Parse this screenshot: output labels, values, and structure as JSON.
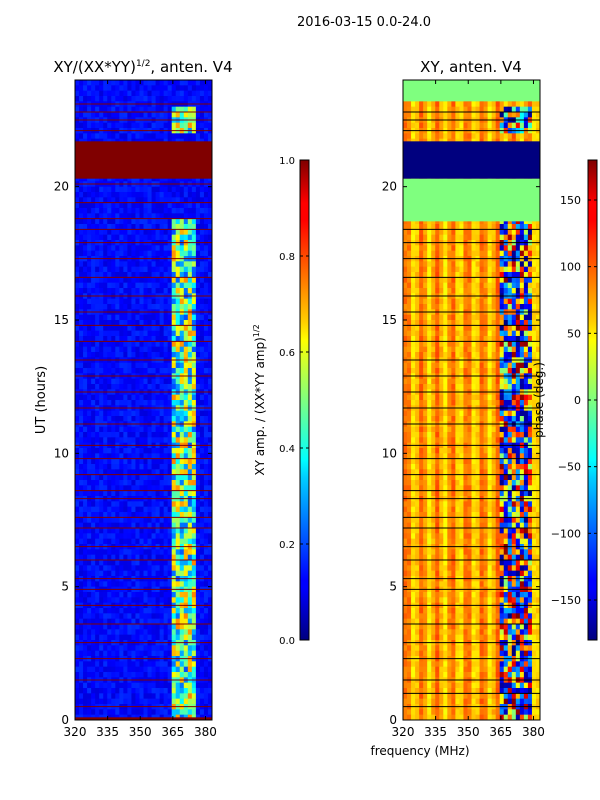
{
  "suptitle": "2016-03-15 0.0-24.0",
  "shared_xlabel": "frequency (MHz)",
  "chart_data": [
    {
      "type": "heatmap",
      "id": "amp",
      "title": "XY/(XX*YY)",
      "title_exp": "1/2",
      "title_suffix": ", anten. V4",
      "ylabel": "UT (hours)",
      "xlim": [
        320,
        383
      ],
      "ylim": [
        0,
        24
      ],
      "xticks": [
        320,
        335,
        350,
        365,
        380
      ],
      "yticks": [
        0,
        5,
        10,
        15,
        20
      ],
      "colormap": "jet",
      "background_color": "#0000b4",
      "flag_color": "#800000",
      "signal_band_mhz": [
        364,
        375
      ],
      "flagged_ranges_ut": [
        [
          20.3,
          21.7
        ],
        [
          0,
          0.1
        ]
      ],
      "thin_flag_lines_ut": [
        0.5,
        1.5,
        2.3,
        2.9,
        3.6,
        4.3,
        4.9,
        5.3,
        6.0,
        6.5,
        7.2,
        7.6,
        8.3,
        8.6,
        9.2,
        9.8,
        10.3,
        11.1,
        11.7,
        12.3,
        12.9,
        13.5,
        14.2,
        14.8,
        15.3,
        15.9,
        16.6,
        17.3,
        17.9,
        18.4,
        18.8,
        19.4,
        20.1,
        22.1,
        22.5,
        22.8,
        23.1
      ],
      "colorbar": {
        "label": "XY amp. / (XX*YY amp)",
        "label_exp": "1/2",
        "range": [
          0.0,
          1.0
        ],
        "ticks": [
          "0.0",
          "0.2",
          "0.4",
          "0.6",
          "0.8",
          "1.0"
        ],
        "tick_values": [
          0.0,
          0.2,
          0.4,
          0.6,
          0.8,
          1.0
        ]
      }
    },
    {
      "type": "heatmap",
      "id": "phase",
      "title": "XY, anten. V4",
      "xlim": [
        320,
        383
      ],
      "ylim": [
        0,
        24
      ],
      "xticks": [
        320,
        335,
        350,
        365,
        380
      ],
      "yticks": [
        0,
        5,
        10,
        15,
        20
      ],
      "colormap": "jet",
      "background_color": "#ffb300",
      "flag_color": "#000000",
      "green_ranges_ut": [
        [
          23.2,
          24
        ],
        [
          18.7,
          20.3
        ]
      ],
      "dark_ranges_ut": [
        [
          20.3,
          21.7
        ]
      ],
      "signal_band_mhz": [
        364,
        380
      ],
      "thin_flag_lines_ut": [
        0.5,
        1.0,
        1.5,
        2.3,
        2.9,
        3.6,
        4.3,
        4.9,
        5.3,
        6.0,
        6.5,
        7.2,
        7.6,
        8.3,
        8.6,
        9.2,
        9.8,
        10.3,
        11.1,
        11.7,
        12.3,
        12.9,
        13.5,
        14.2,
        14.8,
        15.3,
        15.9,
        16.6,
        17.3,
        17.9,
        18.4,
        22.1,
        22.5,
        22.8
      ],
      "colorbar": {
        "label": "phase (deg.)",
        "range": [
          -180,
          180
        ],
        "ticks": [
          "150",
          "100",
          "50",
          "0",
          "−50",
          "−100",
          "−150"
        ],
        "tick_values": [
          150,
          100,
          50,
          0,
          -50,
          -100,
          -150
        ]
      }
    }
  ]
}
